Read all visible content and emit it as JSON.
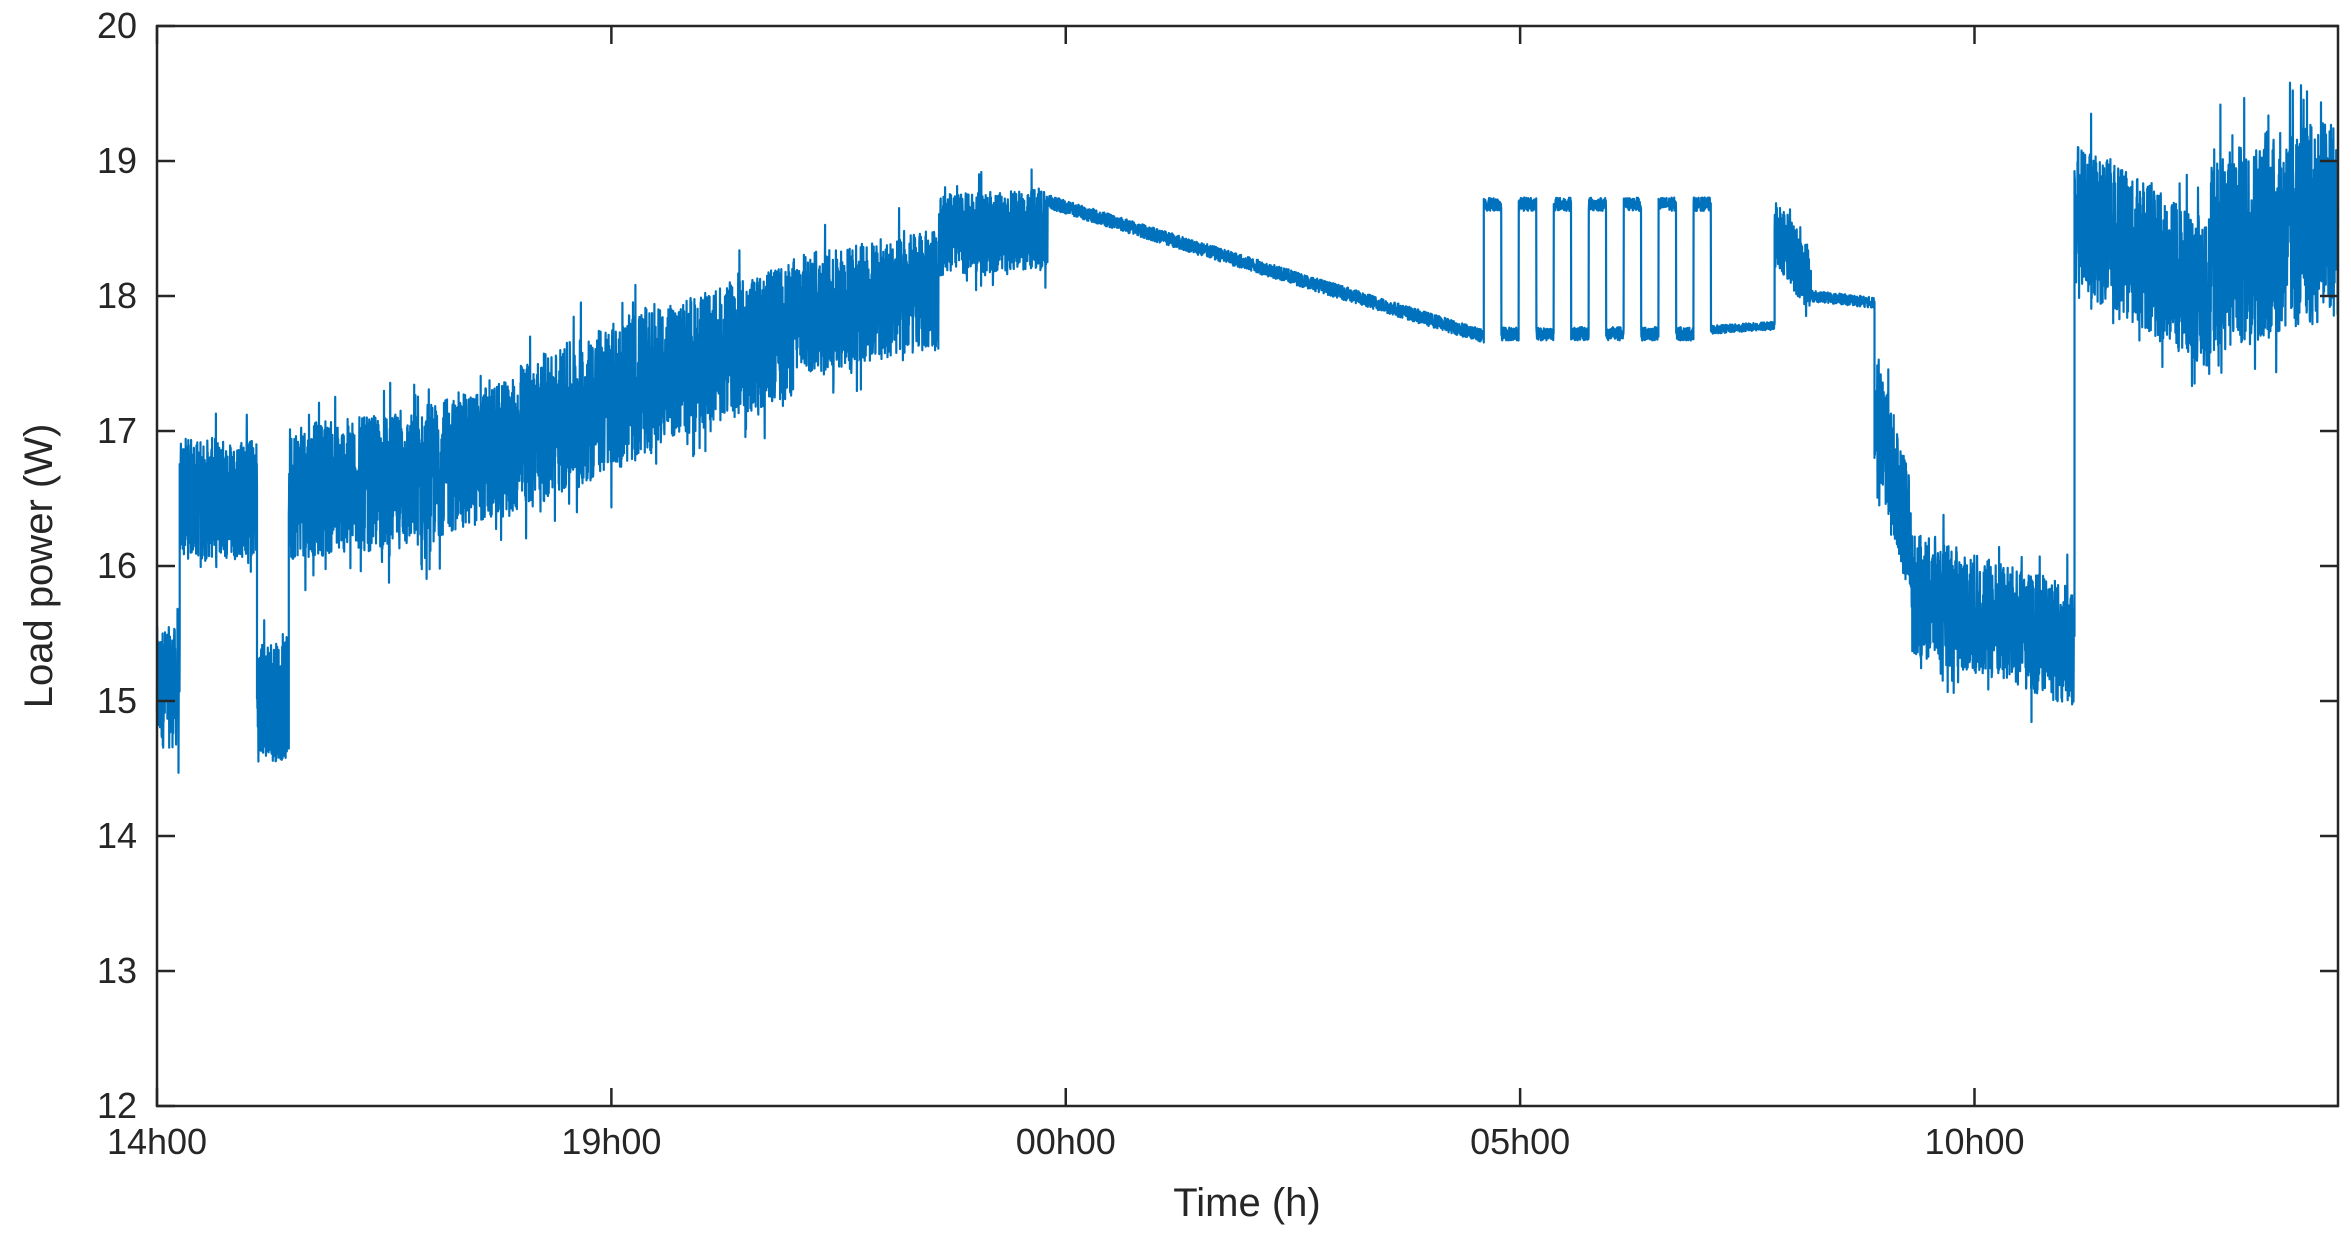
{
  "chart_data": {
    "type": "line",
    "title": "",
    "xlabel": "Time (h)",
    "ylabel": "Load power (W)",
    "xlim_hours_since_14h00": [
      0,
      24
    ],
    "ylim": [
      12,
      20
    ],
    "xticks": [
      {
        "label": "14h00",
        "hour": 0
      },
      {
        "label": "19h00",
        "hour": 5
      },
      {
        "label": "00h00",
        "hour": 10
      },
      {
        "label": "05h00",
        "hour": 15
      },
      {
        "label": "10h00",
        "hour": 20
      }
    ],
    "yticks": [
      12,
      13,
      14,
      15,
      16,
      17,
      18,
      19,
      20
    ],
    "grid": false,
    "box": true,
    "series": [
      {
        "color": "#0072BD",
        "segments": [
          {
            "kind": "noise",
            "t": [
              0.0,
              0.25
            ],
            "base": [
              15.1,
              15.1
            ],
            "amp": 0.45
          },
          {
            "kind": "noise",
            "t": [
              0.25,
              1.1
            ],
            "base": [
              16.5,
              16.5
            ],
            "amp": 0.45
          },
          {
            "kind": "noise",
            "t": [
              1.1,
              1.45
            ],
            "base": [
              15.0,
              15.0
            ],
            "amp": 0.45
          },
          {
            "kind": "noise",
            "t": [
              1.45,
              3.0
            ],
            "base": [
              16.55,
              16.65
            ],
            "amp": 0.5
          },
          {
            "kind": "noise",
            "t": [
              3.0,
              4.0
            ],
            "base": [
              16.7,
              16.9
            ],
            "amp": 0.5
          },
          {
            "kind": "noise",
            "t": [
              4.0,
              5.5
            ],
            "base": [
              16.95,
              17.4
            ],
            "amp": 0.55
          },
          {
            "kind": "noise",
            "t": [
              5.5,
              7.0
            ],
            "base": [
              17.4,
              17.75
            ],
            "amp": 0.5
          },
          {
            "kind": "noise",
            "t": [
              7.0,
              8.6
            ],
            "base": [
              17.85,
              18.05
            ],
            "amp": 0.45
          },
          {
            "kind": "noise",
            "t": [
              8.6,
              9.8
            ],
            "base": [
              18.45,
              18.5
            ],
            "amp": 0.3
          },
          {
            "kind": "smooth",
            "t": [
              9.8,
              14.6
            ],
            "base": [
              18.7,
              17.7
            ],
            "amp": 0.05
          },
          {
            "kind": "square",
            "t": [
              14.6,
              17.1
            ],
            "base": [
              17.7,
              17.7
            ],
            "amp": 0.05
          },
          {
            "kind": "smooth",
            "t": [
              17.1,
              17.8
            ],
            "base": [
              17.75,
              17.78
            ],
            "amp": 0.03
          },
          {
            "kind": "noise",
            "t": [
              17.8,
              18.2
            ],
            "base": [
              18.5,
              18.1
            ],
            "amp": 0.25
          },
          {
            "kind": "smooth",
            "t": [
              18.2,
              18.9
            ],
            "base": [
              18.0,
              17.95
            ],
            "amp": 0.04
          },
          {
            "kind": "noise",
            "t": [
              18.9,
              19.3
            ],
            "base": [
              17.2,
              16.2
            ],
            "amp": 0.45
          },
          {
            "kind": "noise",
            "t": [
              19.3,
              21.1
            ],
            "base": [
              15.8,
              15.4
            ],
            "amp": 0.45
          },
          {
            "kind": "noise",
            "t": [
              21.1,
              22.6
            ],
            "base": [
              18.6,
              18.0
            ],
            "amp": 0.55
          },
          {
            "kind": "noise",
            "t": [
              22.6,
              24.0
            ],
            "base": [
              18.3,
              18.6
            ],
            "amp": 0.75
          }
        ]
      }
    ]
  }
}
